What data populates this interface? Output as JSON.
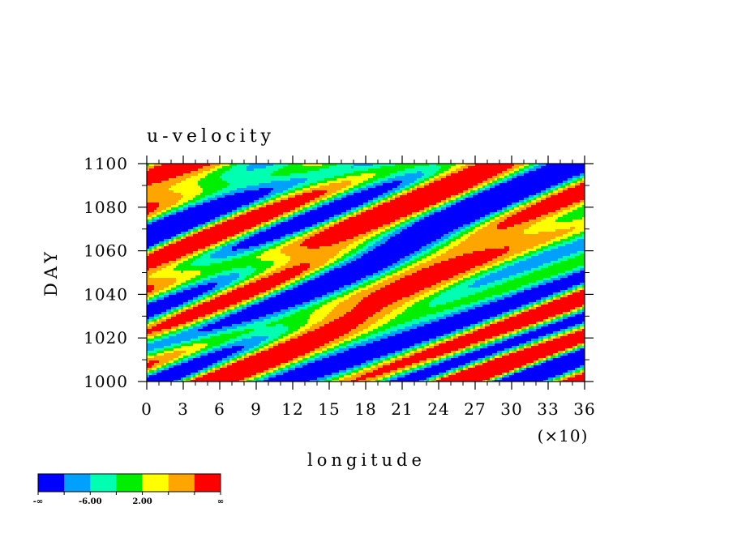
{
  "chart_data": {
    "type": "heatmap",
    "title": "u-velocity",
    "xlabel": "longitude",
    "x_multiplier_label": "(×10)",
    "ylabel": "DAY",
    "x_range": [
      0,
      36
    ],
    "y_range": [
      1000,
      1100
    ],
    "x_ticks": [
      "0",
      "3",
      "6",
      "9",
      "12",
      "15",
      "18",
      "21",
      "24",
      "27",
      "30",
      "33",
      "36"
    ],
    "y_ticks": [
      "1000",
      "1020",
      "1040",
      "1060",
      "1080",
      "1100"
    ],
    "colorbar": {
      "colors": [
        "#0000ff",
        "#00a0ff",
        "#00ffb0",
        "#00ee00",
        "#ffff00",
        "#ffa500",
        "#ff0000"
      ],
      "labels": [
        "-∞",
        "-6.00",
        "2.00",
        "∞"
      ]
    },
    "field_description": "zonally tilted bands of positive (red/orange) and negative (blue) u-velocity anomalies"
  }
}
